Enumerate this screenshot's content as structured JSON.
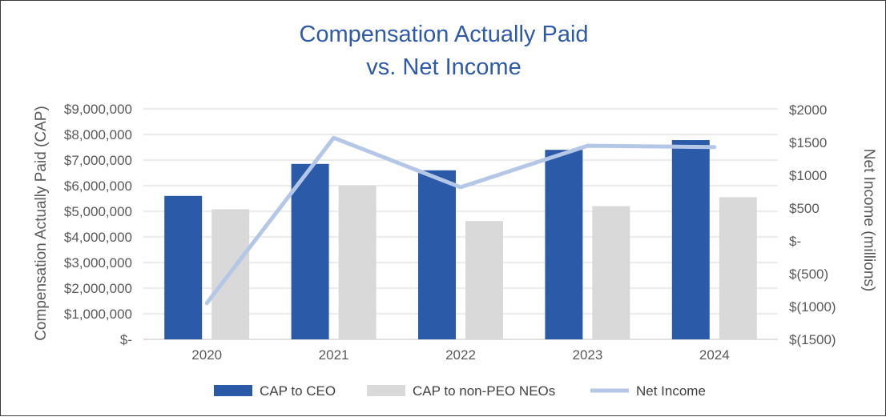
{
  "chart_data": {
    "type": "bar",
    "title_lines": [
      "Compensation Actually Paid",
      "vs. Net Income"
    ],
    "categories": [
      "2020",
      "2021",
      "2022",
      "2023",
      "2024"
    ],
    "series": [
      {
        "name": "CAP to CEO",
        "kind": "bar",
        "axis": "left",
        "color": "#2b5ba8",
        "values": [
          5600000,
          6850000,
          6600000,
          7400000,
          7780000
        ]
      },
      {
        "name": "CAP to non-PEO NEOs",
        "kind": "bar",
        "axis": "left",
        "color": "#d9d9d9",
        "values": [
          5080000,
          6020000,
          4620000,
          5200000,
          5550000
        ]
      },
      {
        "name": "Net Income",
        "kind": "line",
        "axis": "right",
        "color": "#b4c7e7",
        "values": [
          -950,
          1560,
          810,
          1440,
          1420
        ]
      }
    ],
    "left_axis": {
      "label": "Compensation Actually Paid (CAP)",
      "ylim": [
        0,
        9000000
      ],
      "ticks": [
        0,
        1000000,
        2000000,
        3000000,
        4000000,
        5000000,
        6000000,
        7000000,
        8000000,
        9000000
      ],
      "tick_labels": [
        "$-",
        "$1,000,000",
        "$2,000,000",
        "$3,000,000",
        "$4,000,000",
        "$5,000,000",
        "$6,000,000",
        "$7,000,000",
        "$8,000,000",
        "$9,000,000"
      ]
    },
    "right_axis": {
      "label": "Net Income (millions)",
      "ylim": [
        -1500,
        2000
      ],
      "ticks": [
        -1500,
        -1000,
        -500,
        0,
        500,
        1000,
        1500,
        2000
      ],
      "tick_labels": [
        "$(1500)",
        "$(1000)",
        "$(500)",
        "$-",
        "$500",
        "$1000",
        "$1500",
        "$2000"
      ]
    },
    "grid": true,
    "legend_position": "bottom"
  }
}
